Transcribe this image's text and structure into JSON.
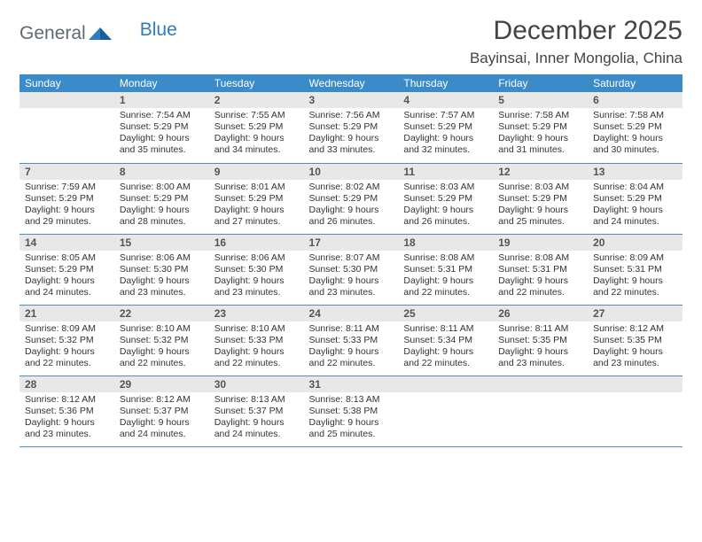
{
  "logo": {
    "text1": "General",
    "text2": "Blue"
  },
  "title": {
    "month": "December 2025",
    "location": "Bayinsai, Inner Mongolia, China"
  },
  "style": {
    "header_bg": "#3b8bc9",
    "header_fg": "#ffffff",
    "daynum_bg": "#e8e8e8",
    "border_color": "#4a90c2",
    "text_color": "#333333"
  },
  "weekday_labels": [
    "Sunday",
    "Monday",
    "Tuesday",
    "Wednesday",
    "Thursday",
    "Friday",
    "Saturday"
  ],
  "calendar": {
    "first_weekday_index": 1,
    "days": [
      {
        "n": 1,
        "sunrise": "7:54 AM",
        "sunset": "5:29 PM",
        "daylight": "9 hours and 35 minutes."
      },
      {
        "n": 2,
        "sunrise": "7:55 AM",
        "sunset": "5:29 PM",
        "daylight": "9 hours and 34 minutes."
      },
      {
        "n": 3,
        "sunrise": "7:56 AM",
        "sunset": "5:29 PM",
        "daylight": "9 hours and 33 minutes."
      },
      {
        "n": 4,
        "sunrise": "7:57 AM",
        "sunset": "5:29 PM",
        "daylight": "9 hours and 32 minutes."
      },
      {
        "n": 5,
        "sunrise": "7:58 AM",
        "sunset": "5:29 PM",
        "daylight": "9 hours and 31 minutes."
      },
      {
        "n": 6,
        "sunrise": "7:58 AM",
        "sunset": "5:29 PM",
        "daylight": "9 hours and 30 minutes."
      },
      {
        "n": 7,
        "sunrise": "7:59 AM",
        "sunset": "5:29 PM",
        "daylight": "9 hours and 29 minutes."
      },
      {
        "n": 8,
        "sunrise": "8:00 AM",
        "sunset": "5:29 PM",
        "daylight": "9 hours and 28 minutes."
      },
      {
        "n": 9,
        "sunrise": "8:01 AM",
        "sunset": "5:29 PM",
        "daylight": "9 hours and 27 minutes."
      },
      {
        "n": 10,
        "sunrise": "8:02 AM",
        "sunset": "5:29 PM",
        "daylight": "9 hours and 26 minutes."
      },
      {
        "n": 11,
        "sunrise": "8:03 AM",
        "sunset": "5:29 PM",
        "daylight": "9 hours and 26 minutes."
      },
      {
        "n": 12,
        "sunrise": "8:03 AM",
        "sunset": "5:29 PM",
        "daylight": "9 hours and 25 minutes."
      },
      {
        "n": 13,
        "sunrise": "8:04 AM",
        "sunset": "5:29 PM",
        "daylight": "9 hours and 24 minutes."
      },
      {
        "n": 14,
        "sunrise": "8:05 AM",
        "sunset": "5:29 PM",
        "daylight": "9 hours and 24 minutes."
      },
      {
        "n": 15,
        "sunrise": "8:06 AM",
        "sunset": "5:30 PM",
        "daylight": "9 hours and 23 minutes."
      },
      {
        "n": 16,
        "sunrise": "8:06 AM",
        "sunset": "5:30 PM",
        "daylight": "9 hours and 23 minutes."
      },
      {
        "n": 17,
        "sunrise": "8:07 AM",
        "sunset": "5:30 PM",
        "daylight": "9 hours and 23 minutes."
      },
      {
        "n": 18,
        "sunrise": "8:08 AM",
        "sunset": "5:31 PM",
        "daylight": "9 hours and 22 minutes."
      },
      {
        "n": 19,
        "sunrise": "8:08 AM",
        "sunset": "5:31 PM",
        "daylight": "9 hours and 22 minutes."
      },
      {
        "n": 20,
        "sunrise": "8:09 AM",
        "sunset": "5:31 PM",
        "daylight": "9 hours and 22 minutes."
      },
      {
        "n": 21,
        "sunrise": "8:09 AM",
        "sunset": "5:32 PM",
        "daylight": "9 hours and 22 minutes."
      },
      {
        "n": 22,
        "sunrise": "8:10 AM",
        "sunset": "5:32 PM",
        "daylight": "9 hours and 22 minutes."
      },
      {
        "n": 23,
        "sunrise": "8:10 AM",
        "sunset": "5:33 PM",
        "daylight": "9 hours and 22 minutes."
      },
      {
        "n": 24,
        "sunrise": "8:11 AM",
        "sunset": "5:33 PM",
        "daylight": "9 hours and 22 minutes."
      },
      {
        "n": 25,
        "sunrise": "8:11 AM",
        "sunset": "5:34 PM",
        "daylight": "9 hours and 22 minutes."
      },
      {
        "n": 26,
        "sunrise": "8:11 AM",
        "sunset": "5:35 PM",
        "daylight": "9 hours and 23 minutes."
      },
      {
        "n": 27,
        "sunrise": "8:12 AM",
        "sunset": "5:35 PM",
        "daylight": "9 hours and 23 minutes."
      },
      {
        "n": 28,
        "sunrise": "8:12 AM",
        "sunset": "5:36 PM",
        "daylight": "9 hours and 23 minutes."
      },
      {
        "n": 29,
        "sunrise": "8:12 AM",
        "sunset": "5:37 PM",
        "daylight": "9 hours and 24 minutes."
      },
      {
        "n": 30,
        "sunrise": "8:13 AM",
        "sunset": "5:37 PM",
        "daylight": "9 hours and 24 minutes."
      },
      {
        "n": 31,
        "sunrise": "8:13 AM",
        "sunset": "5:38 PM",
        "daylight": "9 hours and 25 minutes."
      }
    ]
  },
  "labels": {
    "sunrise": "Sunrise:",
    "sunset": "Sunset:",
    "daylight": "Daylight:"
  }
}
